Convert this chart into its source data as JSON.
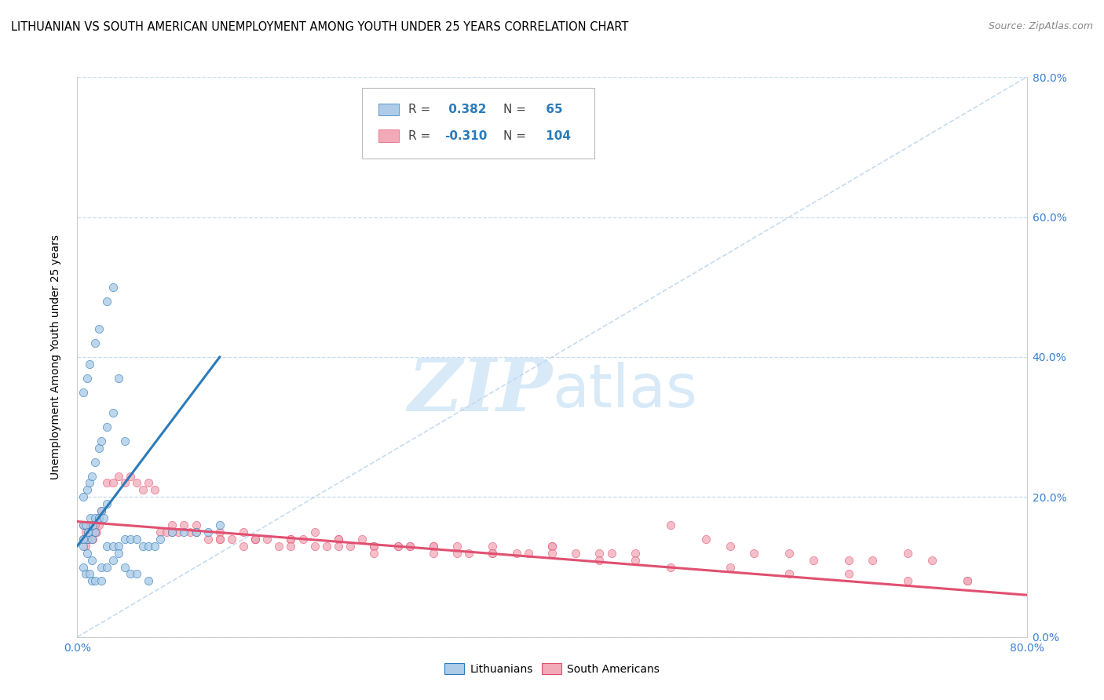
{
  "title": "LITHUANIAN VS SOUTH AMERICAN UNEMPLOYMENT AMONG YOUTH UNDER 25 YEARS CORRELATION CHART",
  "source": "Source: ZipAtlas.com",
  "ylabel": "Unemployment Among Youth under 25 years",
  "xlim": [
    0.0,
    0.8
  ],
  "ylim": [
    0.0,
    0.8
  ],
  "xticks": [
    0.0,
    0.2,
    0.4,
    0.6,
    0.8
  ],
  "yticks": [
    0.0,
    0.2,
    0.4,
    0.6,
    0.8
  ],
  "xticklabels": [
    "0.0%",
    "",
    "",
    "",
    "80.0%"
  ],
  "yticklabels_right": [
    "0.0%",
    "20.0%",
    "40.0%",
    "60.0%",
    "80.0%"
  ],
  "legend_labels": [
    "Lithuanians",
    "South Americans"
  ],
  "blue_R": 0.382,
  "blue_N": 65,
  "pink_R": -0.31,
  "pink_N": 104,
  "blue_color": "#aecce8",
  "pink_color": "#f2aab8",
  "blue_line_color": "#2b7bba",
  "pink_line_color": "#e05070",
  "diag_line_color": "#c0d8ee",
  "watermark_color": "#d8eaf8",
  "blue_scatter_x": [
    0.005,
    0.008,
    0.01,
    0.012,
    0.015,
    0.005,
    0.007,
    0.009,
    0.011,
    0.013,
    0.015,
    0.018,
    0.02,
    0.022,
    0.025,
    0.005,
    0.008,
    0.01,
    0.012,
    0.015,
    0.018,
    0.02,
    0.025,
    0.03,
    0.005,
    0.008,
    0.01,
    0.015,
    0.018,
    0.025,
    0.03,
    0.035,
    0.04,
    0.005,
    0.007,
    0.01,
    0.012,
    0.015,
    0.02,
    0.025,
    0.03,
    0.035,
    0.04,
    0.045,
    0.05,
    0.055,
    0.06,
    0.065,
    0.07,
    0.08,
    0.09,
    0.1,
    0.11,
    0.12,
    0.005,
    0.008,
    0.012,
    0.02,
    0.025,
    0.03,
    0.035,
    0.04,
    0.045,
    0.05,
    0.06
  ],
  "blue_scatter_y": [
    0.13,
    0.14,
    0.15,
    0.14,
    0.15,
    0.16,
    0.16,
    0.15,
    0.17,
    0.16,
    0.17,
    0.17,
    0.18,
    0.17,
    0.19,
    0.2,
    0.21,
    0.22,
    0.23,
    0.25,
    0.27,
    0.28,
    0.3,
    0.32,
    0.35,
    0.37,
    0.39,
    0.42,
    0.44,
    0.48,
    0.5,
    0.37,
    0.28,
    0.1,
    0.09,
    0.09,
    0.08,
    0.08,
    0.08,
    0.13,
    0.13,
    0.13,
    0.14,
    0.14,
    0.14,
    0.13,
    0.13,
    0.13,
    0.14,
    0.15,
    0.15,
    0.15,
    0.15,
    0.16,
    0.14,
    0.12,
    0.11,
    0.1,
    0.1,
    0.11,
    0.12,
    0.1,
    0.09,
    0.09,
    0.08
  ],
  "pink_scatter_x": [
    0.005,
    0.007,
    0.008,
    0.009,
    0.01,
    0.012,
    0.013,
    0.015,
    0.016,
    0.018,
    0.005,
    0.007,
    0.009,
    0.011,
    0.013,
    0.015,
    0.018,
    0.02,
    0.025,
    0.03,
    0.035,
    0.04,
    0.045,
    0.05,
    0.055,
    0.06,
    0.065,
    0.07,
    0.075,
    0.08,
    0.085,
    0.09,
    0.095,
    0.1,
    0.11,
    0.12,
    0.13,
    0.14,
    0.15,
    0.16,
    0.17,
    0.18,
    0.19,
    0.2,
    0.21,
    0.22,
    0.23,
    0.24,
    0.25,
    0.27,
    0.28,
    0.3,
    0.32,
    0.33,
    0.35,
    0.37,
    0.4,
    0.42,
    0.44,
    0.45,
    0.47,
    0.5,
    0.53,
    0.55,
    0.57,
    0.6,
    0.62,
    0.65,
    0.67,
    0.7,
    0.72,
    0.75,
    0.1,
    0.12,
    0.14,
    0.15,
    0.18,
    0.2,
    0.22,
    0.25,
    0.27,
    0.3,
    0.32,
    0.35,
    0.38,
    0.4,
    0.08,
    0.12,
    0.15,
    0.18,
    0.22,
    0.25,
    0.28,
    0.3,
    0.35,
    0.4,
    0.44,
    0.47,
    0.5,
    0.55,
    0.6,
    0.65,
    0.7,
    0.75
  ],
  "pink_scatter_y": [
    0.14,
    0.13,
    0.14,
    0.15,
    0.14,
    0.15,
    0.14,
    0.15,
    0.15,
    0.16,
    0.16,
    0.15,
    0.16,
    0.16,
    0.15,
    0.16,
    0.17,
    0.18,
    0.22,
    0.22,
    0.23,
    0.22,
    0.23,
    0.22,
    0.21,
    0.22,
    0.21,
    0.15,
    0.15,
    0.16,
    0.15,
    0.16,
    0.15,
    0.15,
    0.14,
    0.14,
    0.14,
    0.13,
    0.14,
    0.14,
    0.13,
    0.14,
    0.14,
    0.13,
    0.13,
    0.14,
    0.13,
    0.14,
    0.13,
    0.13,
    0.13,
    0.13,
    0.12,
    0.12,
    0.13,
    0.12,
    0.13,
    0.12,
    0.12,
    0.12,
    0.12,
    0.16,
    0.14,
    0.13,
    0.12,
    0.12,
    0.11,
    0.11,
    0.11,
    0.12,
    0.11,
    0.08,
    0.16,
    0.15,
    0.15,
    0.14,
    0.14,
    0.15,
    0.14,
    0.13,
    0.13,
    0.13,
    0.13,
    0.12,
    0.12,
    0.13,
    0.15,
    0.14,
    0.14,
    0.13,
    0.13,
    0.12,
    0.13,
    0.12,
    0.12,
    0.12,
    0.11,
    0.11,
    0.1,
    0.1,
    0.09,
    0.09,
    0.08,
    0.08
  ],
  "blue_trend_x": [
    0.0,
    0.12
  ],
  "blue_trend_y_start": 0.13,
  "blue_trend_y_end": 0.4,
  "pink_trend_x": [
    0.0,
    0.8
  ],
  "pink_trend_y_start": 0.165,
  "pink_trend_y_end": 0.06
}
